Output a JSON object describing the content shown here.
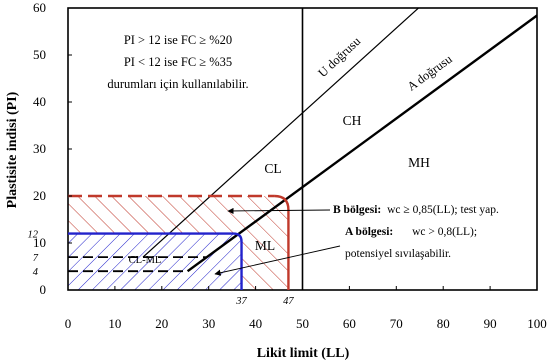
{
  "chart_data": {
    "type": "line",
    "title": "",
    "xlabel": "Likit limit (LL)",
    "ylabel": "Plastisite indisi (PI)",
    "xlim": [
      0,
      100
    ],
    "ylim": [
      0,
      60
    ],
    "x_ticks": [
      "0",
      "10",
      "20",
      "30",
      "40",
      "50",
      "60",
      "70",
      "80",
      "90",
      "100"
    ],
    "y_ticks": [
      "0",
      "10",
      "20",
      "30",
      "40",
      "50",
      "60"
    ],
    "extra_y_labels": [
      {
        "value": 4,
        "text": "4"
      },
      {
        "value": 7,
        "text": "7"
      },
      {
        "value": 12,
        "text": "12"
      }
    ],
    "extra_x_labels": [
      {
        "value": 37,
        "text": "37"
      },
      {
        "value": 47,
        "text": "47"
      }
    ],
    "series": [
      {
        "name": "U doğrusu",
        "x": [
          16,
          100
        ],
        "y": [
          7,
          82.8
        ],
        "color": "#000000"
      },
      {
        "name": "A doğrusu",
        "x": [
          25.5,
          100
        ],
        "y": [
          4,
          58.4
        ],
        "color": "#000000"
      }
    ],
    "reference_lines": [
      {
        "orientation": "vertical",
        "x": 50,
        "color": "#000000"
      },
      {
        "orientation": "horizontal",
        "y": 4,
        "x_range": [
          0,
          25.5
        ],
        "style": "dashed",
        "color": "#000000"
      },
      {
        "orientation": "horizontal",
        "y": 7,
        "x_range": [
          0,
          29.4
        ],
        "style": "dashed",
        "color": "#000000"
      }
    ],
    "regions": [
      {
        "name": "B bölgesi",
        "color": "#c0392b",
        "pi_min": 20,
        "ll_max": 47,
        "hatch": "///"
      },
      {
        "name": "A bölgesi",
        "color": "#2222cc",
        "pi_min": 12,
        "ll_max": 37,
        "hatch": "\\\\\\"
      }
    ],
    "zone_labels": [
      "CL",
      "CH",
      "MH",
      "ML",
      "CL-ML"
    ],
    "line_labels": [
      "U doğrusu",
      "A doğrusu"
    ],
    "notes": [
      "PI > 12 ise FC ≥ %20",
      "PI < 12 ise FC ≥ %35",
      "durumları için kullanılabilir."
    ],
    "annotations": {
      "b_title": "B bölgesi:",
      "b_text": "wc ≥ 0,85(LL); test yap.",
      "a_title": "A bölgesi:",
      "a_text": "wc > 0,8(LL);",
      "a_text2": "potensiyel sıvılaşabilir."
    },
    "grid": false,
    "legend": "none"
  }
}
